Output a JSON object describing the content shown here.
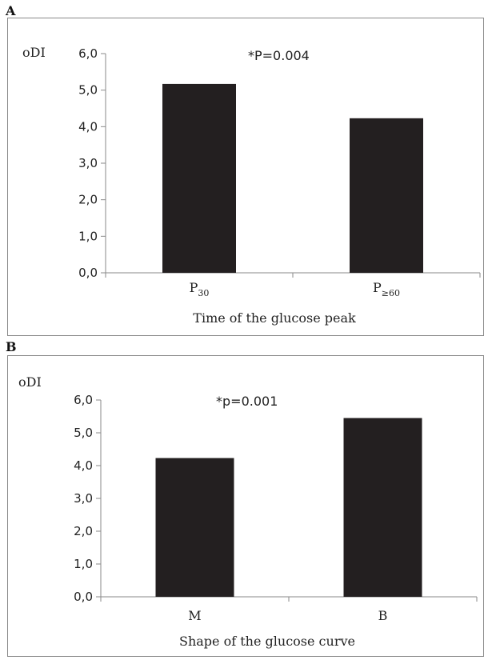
{
  "chart_data": [
    {
      "panel": "A",
      "type": "bar",
      "ylabel": "oDI",
      "annotation": "*P=0.004",
      "xlabel": "Time of the glucose peak",
      "categories": [
        {
          "base": "P",
          "sub": "30"
        },
        {
          "base": "P",
          "sub": "≥60"
        }
      ],
      "values": [
        5.17,
        4.23
      ],
      "yticks": [
        "0,0",
        "1,0",
        "2,0",
        "3,0",
        "4,0",
        "5,0",
        "6,0"
      ],
      "ylim": [
        0,
        6
      ],
      "bar_color": "#231f20",
      "grid": false
    },
    {
      "panel": "B",
      "type": "bar",
      "ylabel": "oDI",
      "annotation": "*p=0.001",
      "xlabel": "Shape of the glucose curve",
      "categories": [
        {
          "base": "M",
          "sub": ""
        },
        {
          "base": "B",
          "sub": ""
        }
      ],
      "values": [
        4.23,
        5.45
      ],
      "yticks": [
        "0,0",
        "1,0",
        "2,0",
        "3,0",
        "4,0",
        "5,0",
        "6,0"
      ],
      "ylim": [
        0,
        6
      ],
      "bar_color": "#231f20",
      "grid": false
    }
  ]
}
